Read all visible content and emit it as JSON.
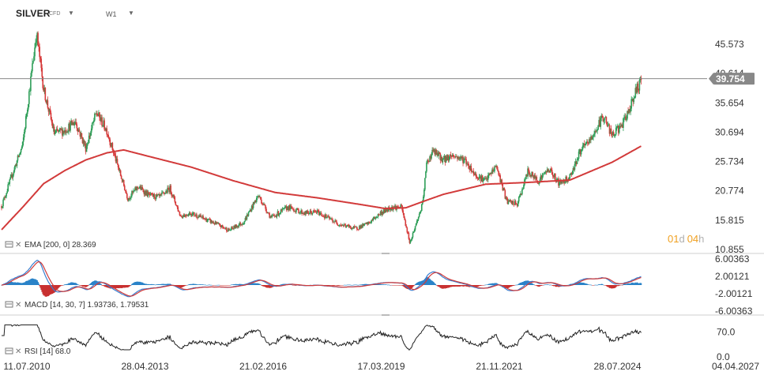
{
  "header": {
    "symbol": "SILVER",
    "instrument_type": "CFD",
    "timeframe": "W1",
    "dropdown_icon": "caret-down-icon"
  },
  "price_badge": {
    "value": "39.754",
    "color": "#888888"
  },
  "countdown": {
    "days": "01",
    "d_unit": "d",
    "hours": "04",
    "h_unit": "h",
    "color": "#f0a020"
  },
  "indicators": {
    "ema_label": "EMA [200, 0] 28.369",
    "macd_label": "MACD [14, 30, 7] 1.93736,  1.79531",
    "rsi_label": "RSI [14] 68.0"
  },
  "colors": {
    "up": "#2e9e58",
    "down": "#d63a3a",
    "ema": "#d23a3a",
    "macd_hist": "#2a83c8",
    "macd_neg": "#c83030"
  },
  "chart_data": [
    {
      "type": "line",
      "name": "price",
      "x_labels": [
        "11.07.2010",
        "28.04.2013",
        "21.02.2016",
        "17.03.2019",
        "21.11.2021",
        "28.07.2024",
        "04.04.2027"
      ],
      "y_ticks": [
        "45.573",
        "40.614",
        "35.654",
        "30.694",
        "25.734",
        "20.774",
        "15.815",
        "10.855"
      ],
      "ylim": [
        10.855,
        45.573
      ],
      "close_path": [
        [
          2010.5,
          18.2
        ],
        [
          2010.8,
          24.5
        ],
        [
          2011.0,
          28.5
        ],
        [
          2011.33,
          47.5
        ],
        [
          2011.5,
          38.0
        ],
        [
          2011.75,
          30.5
        ],
        [
          2012.0,
          31.0
        ],
        [
          2012.25,
          32.5
        ],
        [
          2012.5,
          28.0
        ],
        [
          2012.75,
          34.0
        ],
        [
          2013.0,
          31.0
        ],
        [
          2013.3,
          24.0
        ],
        [
          2013.5,
          19.5
        ],
        [
          2013.75,
          21.5
        ],
        [
          2014.0,
          20.0
        ],
        [
          2014.25,
          19.7
        ],
        [
          2014.5,
          21.2
        ],
        [
          2014.75,
          16.5
        ],
        [
          2015.0,
          17.0
        ],
        [
          2015.5,
          15.5
        ],
        [
          2015.9,
          14.1
        ],
        [
          2016.25,
          15.5
        ],
        [
          2016.6,
          20.0
        ],
        [
          2016.9,
          16.2
        ],
        [
          2017.3,
          18.0
        ],
        [
          2017.7,
          17.0
        ],
        [
          2018.0,
          17.2
        ],
        [
          2018.5,
          15.2
        ],
        [
          2018.9,
          14.4
        ],
        [
          2019.2,
          15.2
        ],
        [
          2019.5,
          17.0
        ],
        [
          2019.75,
          18.0
        ],
        [
          2020.0,
          18.0
        ],
        [
          2020.2,
          12.0
        ],
        [
          2020.5,
          18.5
        ],
        [
          2020.6,
          25.5
        ],
        [
          2020.75,
          27.5
        ],
        [
          2021.0,
          26.0
        ],
        [
          2021.2,
          26.8
        ],
        [
          2021.5,
          26.0
        ],
        [
          2021.75,
          23.5
        ],
        [
          2022.0,
          22.5
        ],
        [
          2022.25,
          25.0
        ],
        [
          2022.5,
          19.0
        ],
        [
          2022.75,
          18.5
        ],
        [
          2023.0,
          24.0
        ],
        [
          2023.25,
          22.5
        ],
        [
          2023.5,
          24.5
        ],
        [
          2023.75,
          22.0
        ],
        [
          2024.0,
          23.2
        ],
        [
          2024.25,
          27.5
        ],
        [
          2024.5,
          29.5
        ],
        [
          2024.8,
          33.5
        ],
        [
          2025.0,
          30.0
        ],
        [
          2025.3,
          32.5
        ],
        [
          2025.5,
          36.5
        ],
        [
          2025.7,
          39.754
        ]
      ],
      "ema_200": [
        [
          2010.5,
          14.2
        ],
        [
          2011.0,
          18.0
        ],
        [
          2011.5,
          22.0
        ],
        [
          2012.0,
          24.2
        ],
        [
          2012.5,
          26.0
        ],
        [
          2013.0,
          27.2
        ],
        [
          2013.4,
          27.7
        ],
        [
          2014.0,
          26.6
        ],
        [
          2015.0,
          24.8
        ],
        [
          2016.0,
          22.5
        ],
        [
          2017.0,
          20.5
        ],
        [
          2018.0,
          19.6
        ],
        [
          2019.0,
          18.5
        ],
        [
          2019.6,
          17.8
        ],
        [
          2020.1,
          17.9
        ],
        [
          2020.6,
          19.2
        ],
        [
          2021.0,
          20.2
        ],
        [
          2022.0,
          21.9
        ],
        [
          2023.0,
          22.2
        ],
        [
          2024.0,
          22.6
        ],
        [
          2025.0,
          25.6
        ],
        [
          2025.7,
          28.369
        ]
      ],
      "last_price": 39.754
    },
    {
      "type": "line",
      "name": "MACD",
      "y_ticks": [
        "6.00363",
        "2.00121",
        "-2.00121",
        "-6.00363"
      ],
      "ylim": [
        -6.00363,
        6.00363
      ],
      "last": [
        1.93736,
        1.79531
      ]
    },
    {
      "type": "line",
      "name": "RSI",
      "y_ticks": [
        "70.0",
        "0.0"
      ],
      "ylim": [
        0,
        100
      ],
      "last": 68.0
    }
  ]
}
